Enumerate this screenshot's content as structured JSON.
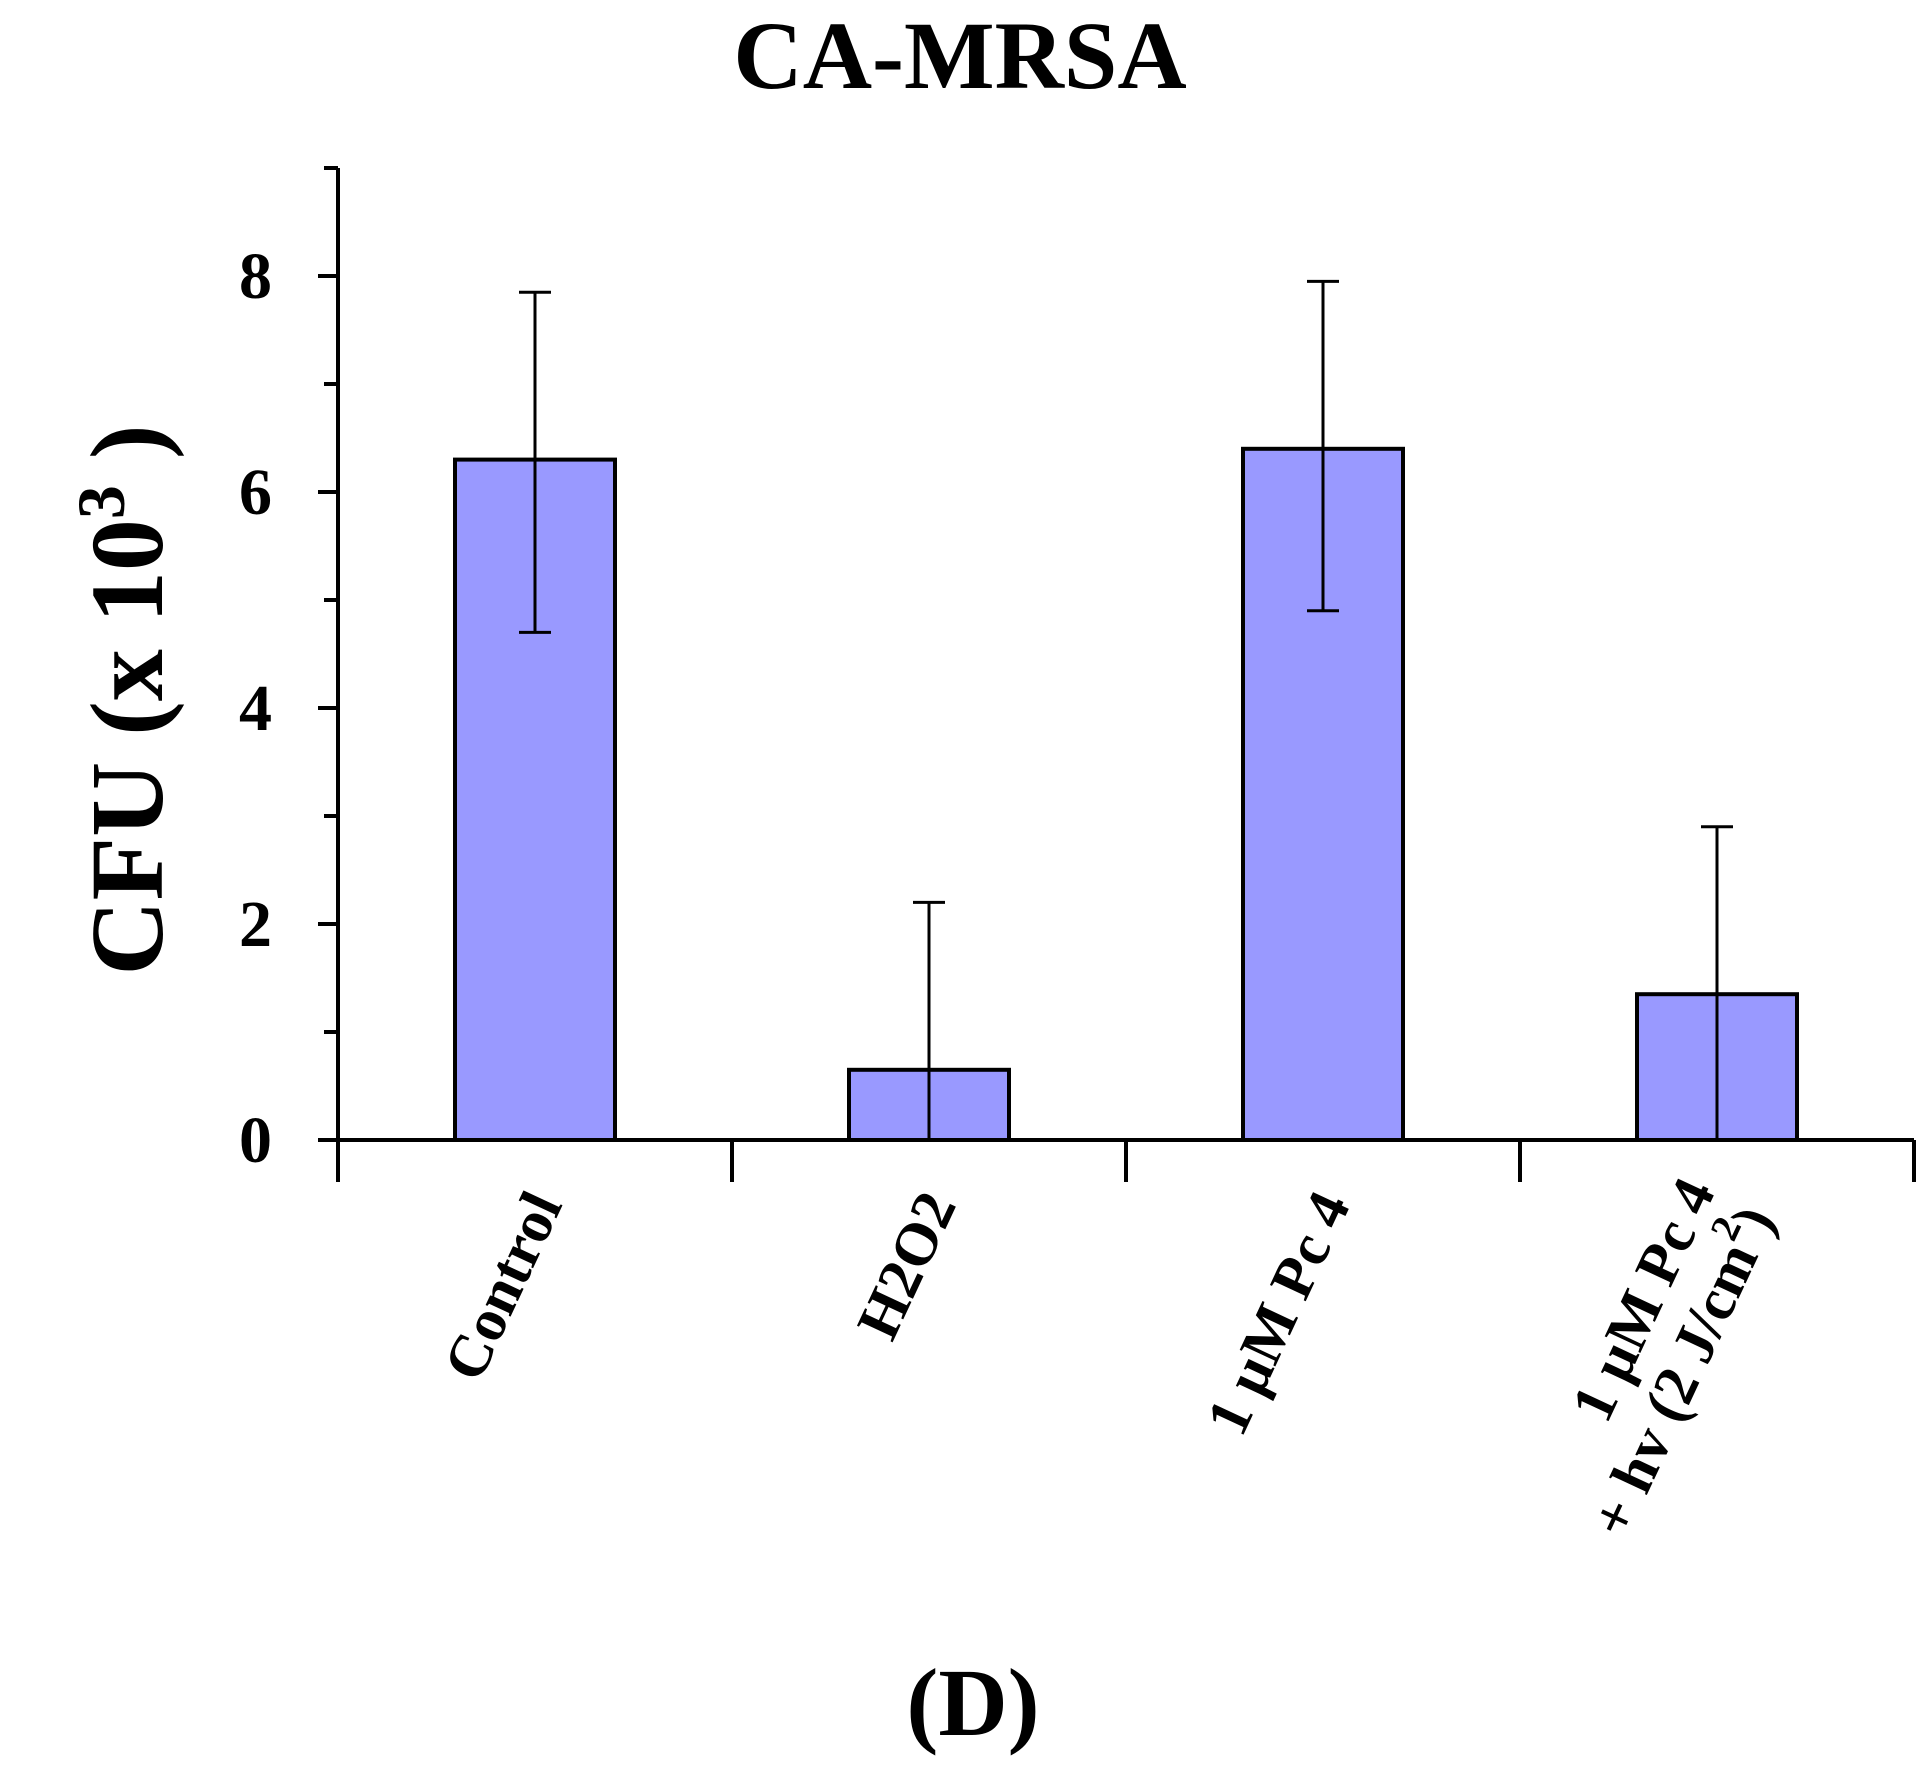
{
  "chart_data": {
    "type": "bar",
    "title": "CA-MRSA",
    "panel_label": "(D)",
    "ylabel_main": "CFU (x 10",
    "ylabel_sup": "3",
    "ylabel_close": ")",
    "xlabel": "",
    "ylim": [
      0,
      9
    ],
    "yticks": [
      0,
      2,
      4,
      6,
      8
    ],
    "ytick_labels": [
      "0",
      "2",
      "4",
      "6",
      "8"
    ],
    "minor_yticks": [
      1,
      3,
      5,
      7,
      9
    ],
    "categories": [
      {
        "lines": [
          "Control"
        ],
        "sup": ""
      },
      {
        "lines": [
          "H2O2"
        ],
        "sup": ""
      },
      {
        "lines": [
          "1 μM Pc 4"
        ],
        "sup": ""
      },
      {
        "lines": [
          "1 μM Pc 4",
          "+ hv (2 J/cm",
          ")"
        ],
        "sup": "2"
      }
    ],
    "values": [
      6.3,
      0.65,
      6.4,
      1.35
    ],
    "error_upper": [
      7.85,
      2.2,
      7.95,
      2.9
    ],
    "error_lower": [
      4.7,
      0,
      4.9,
      0
    ],
    "bar_color": "#9999ff",
    "edge_color": "#000000",
    "grid": false,
    "legend": "none"
  }
}
